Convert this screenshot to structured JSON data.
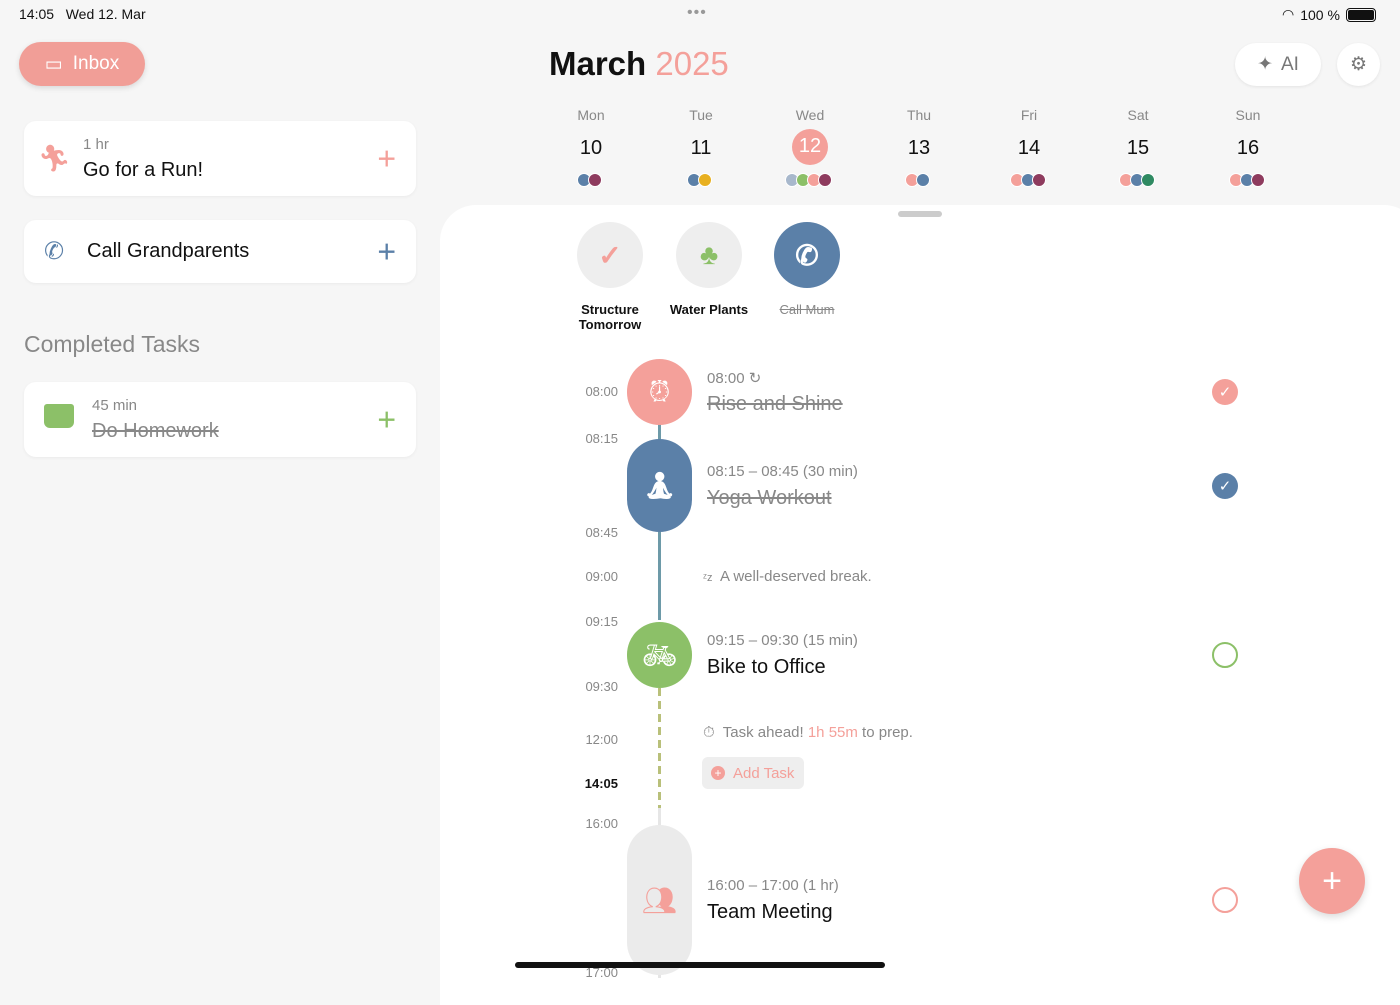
{
  "status": {
    "time": "14:05",
    "date": "Wed 12. Mar",
    "battery": "100 %"
  },
  "sidebar": {
    "inbox_label": "Inbox",
    "tasks": [
      {
        "duration": "1 hr",
        "title": "Go for a Run!",
        "icon": "running-icon"
      },
      {
        "duration": "",
        "title": "Call Grandparents",
        "icon": "phone-icon"
      }
    ],
    "completed_heading": "Completed Tasks",
    "completed": [
      {
        "duration": "45 min",
        "title": "Do Homework",
        "icon": "book-icon"
      }
    ]
  },
  "header": {
    "month": "March",
    "year": "2025",
    "ai_label": "AI"
  },
  "week": [
    {
      "dow": "Mon",
      "day": "10",
      "dots": [
        "#5b80a8",
        "#8e3b5e"
      ]
    },
    {
      "dow": "Tue",
      "day": "11",
      "dots": [
        "#5b80a8",
        "#e8b020"
      ]
    },
    {
      "dow": "Wed",
      "day": "12",
      "selected": true,
      "dots": [
        "#a8b8cc",
        "#8cc068",
        "#f4a09a",
        "#8e3b5e"
      ]
    },
    {
      "dow": "Thu",
      "day": "13",
      "dots": [
        "#f4a09a",
        "#5b80a8"
      ]
    },
    {
      "dow": "Fri",
      "day": "14",
      "dots": [
        "#f4a09a",
        "#5b80a8",
        "#8e3b5e"
      ]
    },
    {
      "dow": "Sat",
      "day": "15",
      "dots": [
        "#f4a09a",
        "#5b80a8",
        "#2f8a62"
      ]
    },
    {
      "dow": "Sun",
      "day": "16",
      "dots": [
        "#f4a09a",
        "#5b80a8",
        "#8e3b5e"
      ]
    }
  ],
  "quick": [
    {
      "label": "Structure Tomorrow",
      "done": false
    },
    {
      "label": "Water Plants",
      "done": false
    },
    {
      "label": "Call Mum",
      "done": true
    }
  ],
  "timeline": {
    "times": [
      "08:00",
      "08:15",
      "08:45",
      "09:00",
      "09:15",
      "09:30",
      "12:00",
      "14:05",
      "16:00",
      "17:00"
    ],
    "events": [
      {
        "time": "08:00",
        "title": "Rise and Shine",
        "done": true
      },
      {
        "time": "08:15 – 08:45 (30 min)",
        "title": "Yoga Workout",
        "done": true
      },
      {
        "time": "09:15 – 09:30 (15 min)",
        "title": "Bike to Office",
        "done": false
      },
      {
        "time": "16:00 – 17:00 (1 hr)",
        "title": "Team Meeting",
        "done": false
      }
    ],
    "break_text": "A well-deserved break.",
    "ahead_pre": "Task ahead! ",
    "ahead_time": "1h 55m",
    "ahead_post": " to prep.",
    "add_task": "Add Task"
  },
  "colors": {
    "accent": "#f4a09a",
    "blue": "#5b80a8",
    "green": "#8cc068"
  }
}
